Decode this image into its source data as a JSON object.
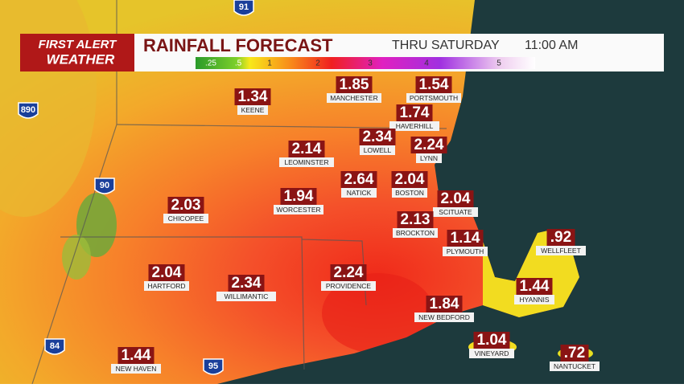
{
  "header": {
    "logo_top": "FIRST ALERT",
    "logo_bottom": "WEATHER",
    "title": "RAINFALL FORECAST",
    "valid_day": "THRU SATURDAY",
    "valid_time": "11:00 AM"
  },
  "legend": {
    "labels": [
      ".25",
      ".5",
      "1",
      "2",
      "3",
      "4",
      "5"
    ]
  },
  "highways": [
    "91",
    "890",
    "90",
    "84",
    "95"
  ],
  "cities": [
    {
      "name": "KEENE",
      "value": "1.34"
    },
    {
      "name": "MANCHESTER",
      "value": "1.85"
    },
    {
      "name": "PORTSMOUTH",
      "value": "1.54"
    },
    {
      "name": "HAVERHILL",
      "value": "1.74"
    },
    {
      "name": "LOWELL",
      "value": "2.34"
    },
    {
      "name": "LYNN",
      "value": "2.24"
    },
    {
      "name": "LEOMINSTER",
      "value": "2.14"
    },
    {
      "name": "NATICK",
      "value": "2.64"
    },
    {
      "name": "BOSTON",
      "value": "2.04"
    },
    {
      "name": "SCITUATE",
      "value": "2.04"
    },
    {
      "name": "WORCESTER",
      "value": "1.94"
    },
    {
      "name": "CHICOPEE",
      "value": "2.03"
    },
    {
      "name": "BROCKTON",
      "value": "2.13"
    },
    {
      "name": "PLYMOUTH",
      "value": "1.14"
    },
    {
      "name": "WELLFLEET",
      "value": ".92"
    },
    {
      "name": "HARTFORD",
      "value": "2.04"
    },
    {
      "name": "WILLIMANTIC",
      "value": "2.34"
    },
    {
      "name": "PROVIDENCE",
      "value": "2.24"
    },
    {
      "name": "HYANNIS",
      "value": "1.44"
    },
    {
      "name": "NEW BEDFORD",
      "value": "1.84"
    },
    {
      "name": "VINEYARD",
      "value": "1.04"
    },
    {
      "name": "NANTUCKET",
      "value": ".72"
    },
    {
      "name": "NEW HAVEN",
      "value": "1.44"
    }
  ]
}
